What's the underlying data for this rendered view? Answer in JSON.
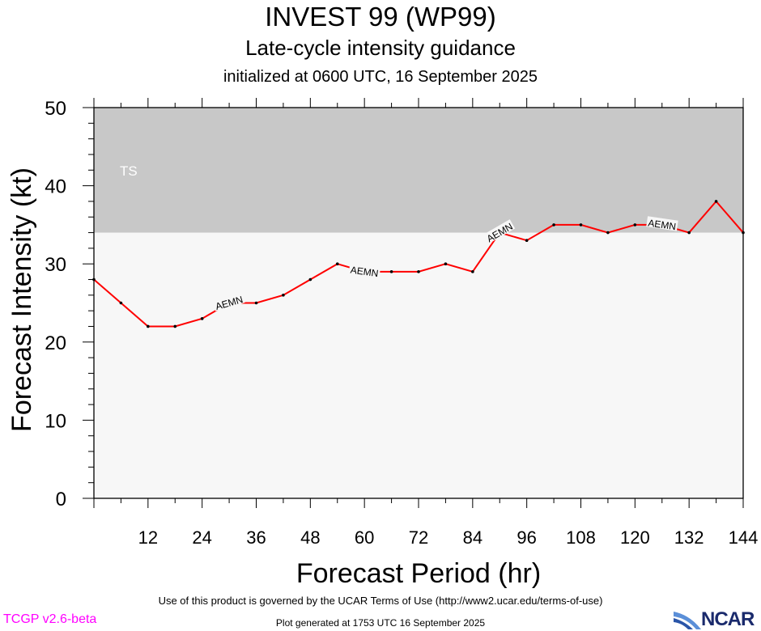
{
  "header": {
    "title": "INVEST 99 (WP99)",
    "subtitle": "Late-cycle intensity guidance",
    "init_line": "initialized at 0600 UTC, 16 September 2025"
  },
  "footer": {
    "terms": "Use of this product is governed by the UCAR Terms of Use (http://www2.ucar.edu/terms-of-use)",
    "generated": "Plot generated at 1753 UTC   16 September 2025",
    "version": "TCGP v2.6-beta",
    "logo_text": "NCAR"
  },
  "colors": {
    "series": "#ff0000",
    "ts_band": "#c8c8c8",
    "below_band": "#f7f7f7",
    "version_text": "#ff00ff",
    "logo": "#1a2a6c"
  },
  "chart_data": {
    "type": "line",
    "xlabel": "Forecast Period (hr)",
    "ylabel": "Forecast Intensity (kt)",
    "xlim": [
      0,
      144
    ],
    "ylim": [
      0,
      50
    ],
    "x_ticks": [
      12,
      24,
      36,
      48,
      60,
      72,
      84,
      96,
      108,
      120,
      132,
      144
    ],
    "y_ticks": [
      0,
      10,
      20,
      30,
      40,
      50
    ],
    "bands": [
      {
        "label": "TS",
        "from": 34,
        "to": 50,
        "color": "#c8c8c8"
      }
    ],
    "series": [
      {
        "name": "AEMN",
        "color": "#ff0000",
        "x": [
          0,
          6,
          12,
          18,
          24,
          30,
          36,
          42,
          48,
          54,
          60,
          66,
          72,
          78,
          84,
          90,
          96,
          102,
          108,
          114,
          120,
          126,
          132,
          138,
          144
        ],
        "y": [
          28,
          25,
          22,
          22,
          23,
          25,
          25,
          26,
          28,
          30,
          29,
          29,
          29,
          30,
          29,
          34,
          33,
          35,
          35,
          34,
          35,
          35,
          34,
          38,
          34
        ],
        "label_at_x": [
          30,
          60,
          90,
          126
        ]
      }
    ]
  }
}
